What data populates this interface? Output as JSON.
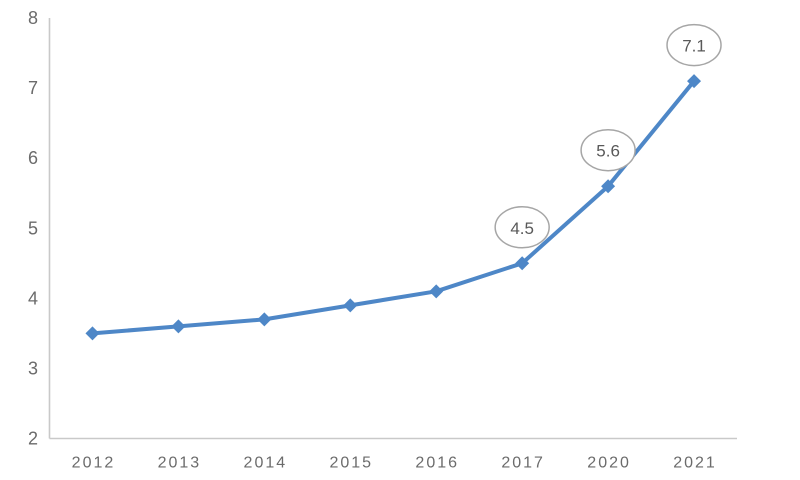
{
  "chart_data": {
    "type": "line",
    "categories": [
      "2012",
      "2013",
      "2014",
      "2015",
      "2016",
      "2017",
      "2020",
      "2021"
    ],
    "values": [
      3.5,
      3.6,
      3.7,
      3.9,
      4.1,
      4.5,
      5.6,
      7.1
    ],
    "title": "",
    "xlabel": "",
    "ylabel": "",
    "ylim": [
      2,
      8
    ],
    "yticks": [
      2,
      3,
      4,
      5,
      6,
      7,
      8
    ],
    "grid": false,
    "legend": false,
    "marker": "diamond",
    "annotations": [
      {
        "category": "2017",
        "label": "4.5"
      },
      {
        "category": "2020",
        "label": "5.6"
      },
      {
        "category": "2021",
        "label": "7.1"
      }
    ],
    "colors": {
      "line": "#4E87C7",
      "marker": "#4E87C7",
      "axis_line": "#C9C9C9",
      "tick_label": "#6B6B6B",
      "annotation_stroke": "#A6A6A6",
      "annotation_fill": "#FFFFFF",
      "annotation_text": "#595959",
      "background": "#FFFFFF"
    }
  }
}
